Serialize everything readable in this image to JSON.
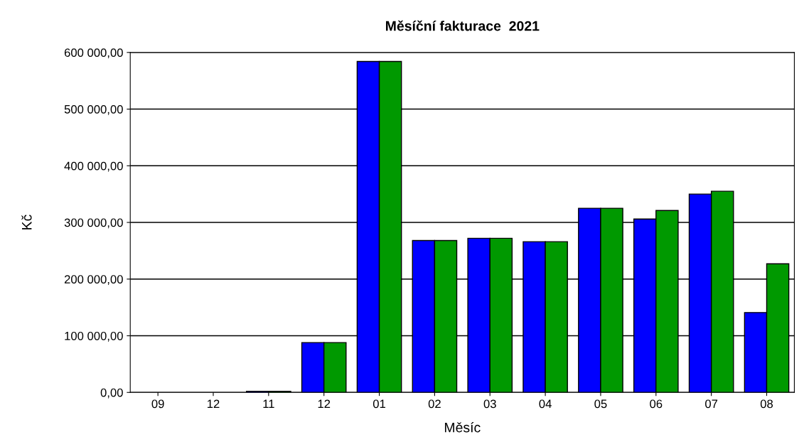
{
  "chart_data": {
    "type": "bar",
    "title": "Měsíční fakturace  2021",
    "xlabel": "Měsíc",
    "ylabel": "Kč",
    "categories": [
      "09",
      "12",
      "11",
      "12",
      "01",
      "02",
      "03",
      "04",
      "05",
      "06",
      "07",
      "08"
    ],
    "series": [
      {
        "color": "#0000ff",
        "values": [
          null,
          null,
          2000,
          88000,
          584000,
          268000,
          272000,
          266000,
          325000,
          306000,
          350000,
          141000
        ]
      },
      {
        "color": "#009900",
        "values": [
          null,
          null,
          2000,
          88000,
          584000,
          268000,
          272000,
          266000,
          325000,
          321000,
          355000,
          227000
        ]
      }
    ],
    "ylim": [
      0,
      600000
    ],
    "yticks": [
      {
        "value": 0,
        "label": "0,00"
      },
      {
        "value": 100000,
        "label": "100 000,00"
      },
      {
        "value": 200000,
        "label": "200 000,00"
      },
      {
        "value": 300000,
        "label": "300 000,00"
      },
      {
        "value": 400000,
        "label": "400 000,00"
      },
      {
        "value": 500000,
        "label": "500 000,00"
      },
      {
        "value": 600000,
        "label": "600 000,00"
      }
    ],
    "grid": "y",
    "legend": false
  }
}
